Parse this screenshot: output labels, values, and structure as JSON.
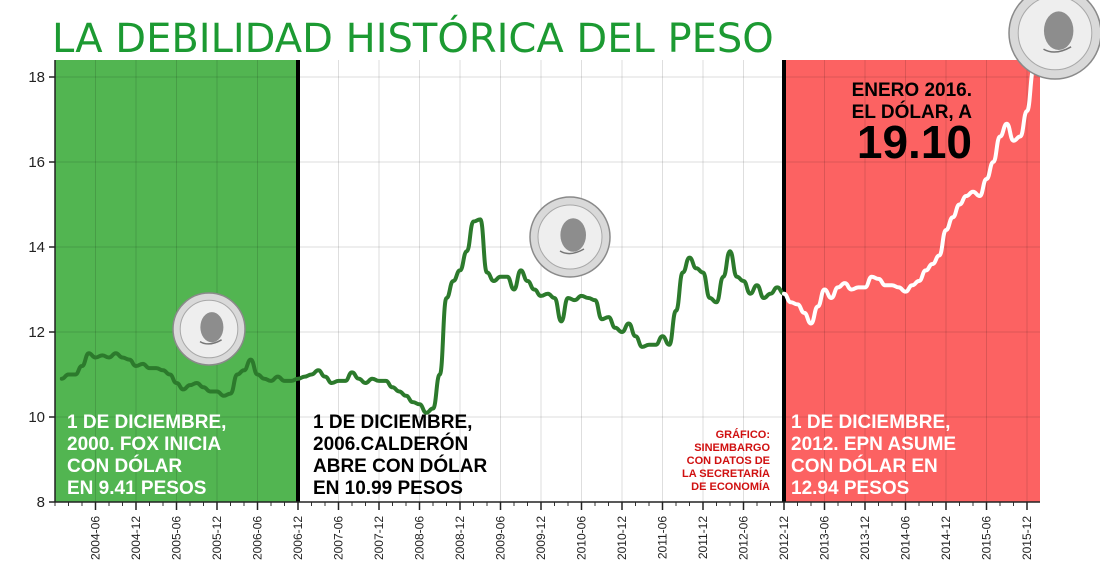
{
  "chart_data": {
    "type": "line",
    "title": "LA DEBILIDAD HISTÓRICA DEL PESO",
    "ylim": [
      8,
      18.4
    ],
    "yticks": [
      8,
      10,
      12,
      14,
      16,
      18
    ],
    "x_tick_labels": [
      "2004-06",
      "2004-12",
      "2005-06",
      "2005-12",
      "2006-06",
      "2006-12",
      "2007-06",
      "2007-12",
      "2008-06",
      "2008-12",
      "2009-06",
      "2009-12",
      "2010-06",
      "2010-12",
      "2011-06",
      "2011-12",
      "2012-06",
      "2012-12",
      "2013-06",
      "2013-12",
      "2014-06",
      "2014-12",
      "2015-06",
      "2015-12"
    ],
    "x_start": "2003-12",
    "grid": true,
    "series": [
      {
        "line_color": "#2c7a2c",
        "points": [
          [
            "2004-01",
            10.9
          ],
          [
            "2004-02",
            11.0
          ],
          [
            "2004-03",
            11.0
          ],
          [
            "2004-04",
            11.2
          ],
          [
            "2004-05",
            11.5
          ],
          [
            "2004-06",
            11.4
          ],
          [
            "2004-07",
            11.45
          ],
          [
            "2004-08",
            11.4
          ],
          [
            "2004-09",
            11.5
          ],
          [
            "2004-10",
            11.4
          ],
          [
            "2004-11",
            11.35
          ],
          [
            "2004-12",
            11.2
          ],
          [
            "2005-01",
            11.25
          ],
          [
            "2005-02",
            11.15
          ],
          [
            "2005-03",
            11.15
          ],
          [
            "2005-04",
            11.1
          ],
          [
            "2005-05",
            11.0
          ],
          [
            "2005-06",
            10.8
          ],
          [
            "2005-07",
            10.65
          ],
          [
            "2005-08",
            10.75
          ],
          [
            "2005-09",
            10.8
          ],
          [
            "2005-10",
            10.7
          ],
          [
            "2005-11",
            10.6
          ],
          [
            "2005-12",
            10.6
          ],
          [
            "2006-01",
            10.5
          ],
          [
            "2006-02",
            10.55
          ],
          [
            "2006-03",
            11.0
          ],
          [
            "2006-04",
            11.1
          ],
          [
            "2006-05",
            11.35
          ],
          [
            "2006-06",
            11.0
          ],
          [
            "2006-07",
            10.9
          ],
          [
            "2006-08",
            10.85
          ],
          [
            "2006-09",
            10.95
          ],
          [
            "2006-10",
            10.85
          ],
          [
            "2006-11",
            10.85
          ],
          [
            "2006-12",
            10.9
          ],
          [
            "2007-01",
            10.95
          ],
          [
            "2007-02",
            11.0
          ],
          [
            "2007-03",
            11.1
          ],
          [
            "2007-04",
            10.95
          ],
          [
            "2007-05",
            10.8
          ],
          [
            "2007-06",
            10.85
          ],
          [
            "2007-07",
            10.85
          ],
          [
            "2007-08",
            11.05
          ],
          [
            "2007-09",
            10.9
          ],
          [
            "2007-10",
            10.8
          ],
          [
            "2007-11",
            10.9
          ],
          [
            "2007-12",
            10.85
          ],
          [
            "2008-01",
            10.85
          ],
          [
            "2008-02",
            10.7
          ],
          [
            "2008-03",
            10.6
          ],
          [
            "2008-04",
            10.5
          ],
          [
            "2008-05",
            10.35
          ],
          [
            "2008-06",
            10.3
          ],
          [
            "2008-07",
            10.1
          ],
          [
            "2008-08",
            10.2
          ],
          [
            "2008-09",
            11.0
          ],
          [
            "2008-10",
            12.8
          ],
          [
            "2008-11",
            13.2
          ],
          [
            "2008-12",
            13.45
          ],
          [
            "2009-01",
            13.9
          ],
          [
            "2009-02",
            14.6
          ],
          [
            "2009-03",
            14.65
          ],
          [
            "2009-04",
            13.4
          ],
          [
            "2009-05",
            13.2
          ],
          [
            "2009-06",
            13.3
          ],
          [
            "2009-07",
            13.3
          ],
          [
            "2009-08",
            13.0
          ],
          [
            "2009-09",
            13.45
          ],
          [
            "2009-10",
            13.2
          ],
          [
            "2009-11",
            13.0
          ],
          [
            "2009-12",
            12.85
          ],
          [
            "2010-01",
            12.9
          ],
          [
            "2010-02",
            12.8
          ],
          [
            "2010-03",
            12.25
          ],
          [
            "2010-04",
            12.8
          ],
          [
            "2010-05",
            12.75
          ],
          [
            "2010-06",
            12.85
          ],
          [
            "2010-07",
            12.8
          ],
          [
            "2010-08",
            12.75
          ],
          [
            "2010-09",
            12.3
          ],
          [
            "2010-10",
            12.35
          ],
          [
            "2010-11",
            12.1
          ],
          [
            "2010-12",
            12.0
          ],
          [
            "2011-01",
            12.2
          ],
          [
            "2011-02",
            11.9
          ],
          [
            "2011-03",
            11.65
          ],
          [
            "2011-04",
            11.7
          ],
          [
            "2011-05",
            11.7
          ],
          [
            "2011-06",
            11.9
          ],
          [
            "2011-07",
            11.7
          ],
          [
            "2011-08",
            12.5
          ],
          [
            "2011-09",
            13.4
          ],
          [
            "2011-10",
            13.75
          ],
          [
            "2011-11",
            13.5
          ],
          [
            "2011-12",
            13.4
          ],
          [
            "2012-01",
            12.8
          ],
          [
            "2012-02",
            12.7
          ],
          [
            "2012-03",
            13.3
          ],
          [
            "2012-04",
            13.9
          ],
          [
            "2012-05",
            13.3
          ],
          [
            "2012-06",
            13.2
          ],
          [
            "2012-07",
            12.9
          ],
          [
            "2012-08",
            13.1
          ],
          [
            "2012-09",
            12.8
          ],
          [
            "2012-10",
            12.9
          ],
          [
            "2012-11",
            13.05
          ],
          [
            "2012-12",
            12.9
          ]
        ]
      },
      {
        "line_color": "#ffffff",
        "points": [
          [
            "2012-12",
            12.9
          ],
          [
            "2013-01",
            12.7
          ],
          [
            "2013-02",
            12.65
          ],
          [
            "2013-03",
            12.45
          ],
          [
            "2013-04",
            12.2
          ],
          [
            "2013-05",
            12.6
          ],
          [
            "2013-06",
            13.0
          ],
          [
            "2013-07",
            12.8
          ],
          [
            "2013-08",
            13.05
          ],
          [
            "2013-09",
            13.15
          ],
          [
            "2013-10",
            13.0
          ],
          [
            "2013-11",
            13.05
          ],
          [
            "2013-12",
            13.05
          ],
          [
            "2014-01",
            13.3
          ],
          [
            "2014-02",
            13.25
          ],
          [
            "2014-03",
            13.1
          ],
          [
            "2014-04",
            13.1
          ],
          [
            "2014-05",
            13.05
          ],
          [
            "2014-06",
            12.95
          ],
          [
            "2014-07",
            13.1
          ],
          [
            "2014-08",
            13.2
          ],
          [
            "2014-09",
            13.45
          ],
          [
            "2014-10",
            13.6
          ],
          [
            "2014-11",
            13.8
          ],
          [
            "2014-12",
            14.4
          ],
          [
            "2015-01",
            14.7
          ],
          [
            "2015-02",
            15.0
          ],
          [
            "2015-03",
            15.2
          ],
          [
            "2015-04",
            15.3
          ],
          [
            "2015-05",
            15.2
          ],
          [
            "2015-06",
            15.6
          ],
          [
            "2015-07",
            16.0
          ],
          [
            "2015-08",
            16.6
          ],
          [
            "2015-09",
            16.9
          ],
          [
            "2015-10",
            16.5
          ],
          [
            "2015-11",
            16.6
          ],
          [
            "2015-12",
            17.2
          ],
          [
            "2016-01",
            18.2
          ]
        ]
      }
    ],
    "periods": [
      {
        "from": "2003-12",
        "to": "2006-12",
        "color": "#52b551",
        "label_color": "#ffffff",
        "lines": [
          "1 DE DICIEMBRE,",
          "2000. FOX INICIA",
          "CON DÓLAR",
          "EN 9.41 PESOS"
        ]
      },
      {
        "from": "2006-12",
        "to": "2012-12",
        "color": "#ffffff",
        "label_color": "#000000",
        "lines": [
          "1 DE DICIEMBRE,",
          "2006.CALDERÓN",
          "ABRE CON DÓLAR",
          "EN 10.99 PESOS"
        ]
      },
      {
        "from": "2012-12",
        "to": "2016-02",
        "color": "#fc6262",
        "label_color": "#ffffff",
        "lines": [
          "1 DE DICIEMBRE,",
          "2012. EPN ASUME",
          "CON DÓLAR EN",
          "12.94 PESOS"
        ]
      }
    ],
    "highlight": {
      "lines": [
        "ENERO 2016.",
        "EL DÓLAR, A"
      ],
      "value": "19.10"
    },
    "credit": [
      "GRÁFICO:",
      "SINEMBARGO",
      "CON DATOS DE",
      "LA SECRETARÍA",
      "DE ECONOMÍA"
    ],
    "coin_icon": "quarter-dollar-coin-icon"
  }
}
